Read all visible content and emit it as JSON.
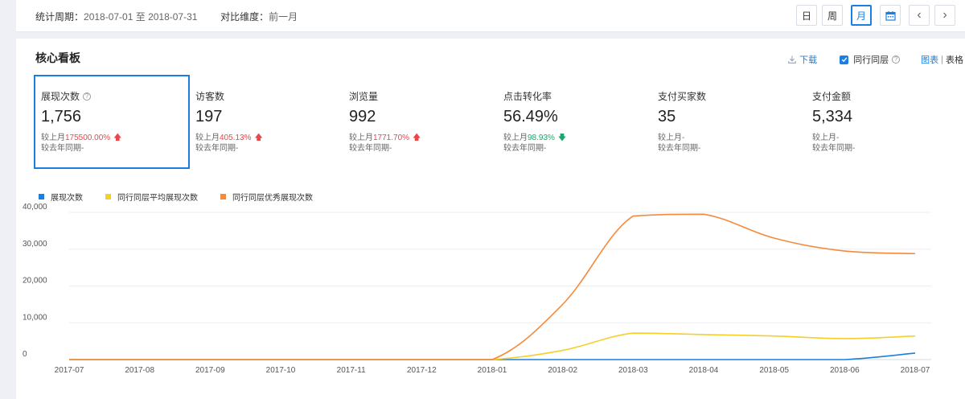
{
  "filter": {
    "period_label": "统计周期：",
    "period_value": "2018-07-01 至 2018-07-31",
    "compare_label": "对比维度：",
    "compare_value": "前一月"
  },
  "toolbar": {
    "day": "日",
    "week": "周",
    "month": "月",
    "prev": "‹",
    "next": "›"
  },
  "panel": {
    "title": "核心看板",
    "download": "下载",
    "peer_label": "同行同层",
    "view_chart": "图表",
    "view_sep": "|",
    "view_table": "表格"
  },
  "kpis": [
    {
      "name": "展现次数",
      "value": "1,756",
      "mom_label": "较上月",
      "mom_value": "175500.00%",
      "trend": "up",
      "yoy_label": "较去年同期-"
    },
    {
      "name": "访客数",
      "value": "197",
      "mom_label": "较上月",
      "mom_value": "405.13%",
      "trend": "up",
      "yoy_label": "较去年同期-"
    },
    {
      "name": "浏览量",
      "value": "992",
      "mom_label": "较上月",
      "mom_value": "1771.70%",
      "trend": "up",
      "yoy_label": "较去年同期-"
    },
    {
      "name": "点击转化率",
      "value": "56.49%",
      "mom_label": "较上月",
      "mom_value": "98.93%",
      "trend": "down",
      "yoy_label": "较去年同期-"
    },
    {
      "name": "支付买家数",
      "value": "35",
      "mom_label": "较上月-",
      "mom_value": "",
      "trend": "",
      "yoy_label": "较去年同期-"
    },
    {
      "name": "支付金额",
      "value": "5,334",
      "mom_label": "较上月-",
      "mom_value": "",
      "trend": "",
      "yoy_label": "较去年同期-"
    }
  ],
  "colors": {
    "accent": "#1a7fe0",
    "up": "#e8474b",
    "down": "#18a86b"
  },
  "chart_data": {
    "type": "line",
    "categories": [
      "2017-07",
      "2017-08",
      "2017-09",
      "2017-10",
      "2017-11",
      "2017-12",
      "2018-01",
      "2018-02",
      "2018-03",
      "2018-04",
      "2018-05",
      "2018-06",
      "2018-07"
    ],
    "series": [
      {
        "name": "展现次数",
        "color": "#1a7fe0",
        "values": [
          0,
          0,
          0,
          0,
          0,
          0,
          0,
          0,
          0,
          0,
          0,
          0,
          1756
        ]
      },
      {
        "name": "同行同层平均展现次数",
        "color": "#f5cf2a",
        "values": [
          0,
          0,
          0,
          0,
          0,
          0,
          0,
          2500,
          7200,
          6800,
          6400,
          5700,
          6400
        ]
      },
      {
        "name": "同行同层优秀展现次数",
        "color": "#f58a3c",
        "values": [
          0,
          0,
          0,
          0,
          0,
          0,
          0,
          15000,
          39000,
          39500,
          33000,
          29500,
          28800
        ]
      }
    ],
    "yticks": [
      "0",
      "10,000",
      "20,000",
      "30,000",
      "40,000"
    ],
    "ylim": [
      0,
      40000
    ],
    "grid": true,
    "legend": "top-left"
  }
}
